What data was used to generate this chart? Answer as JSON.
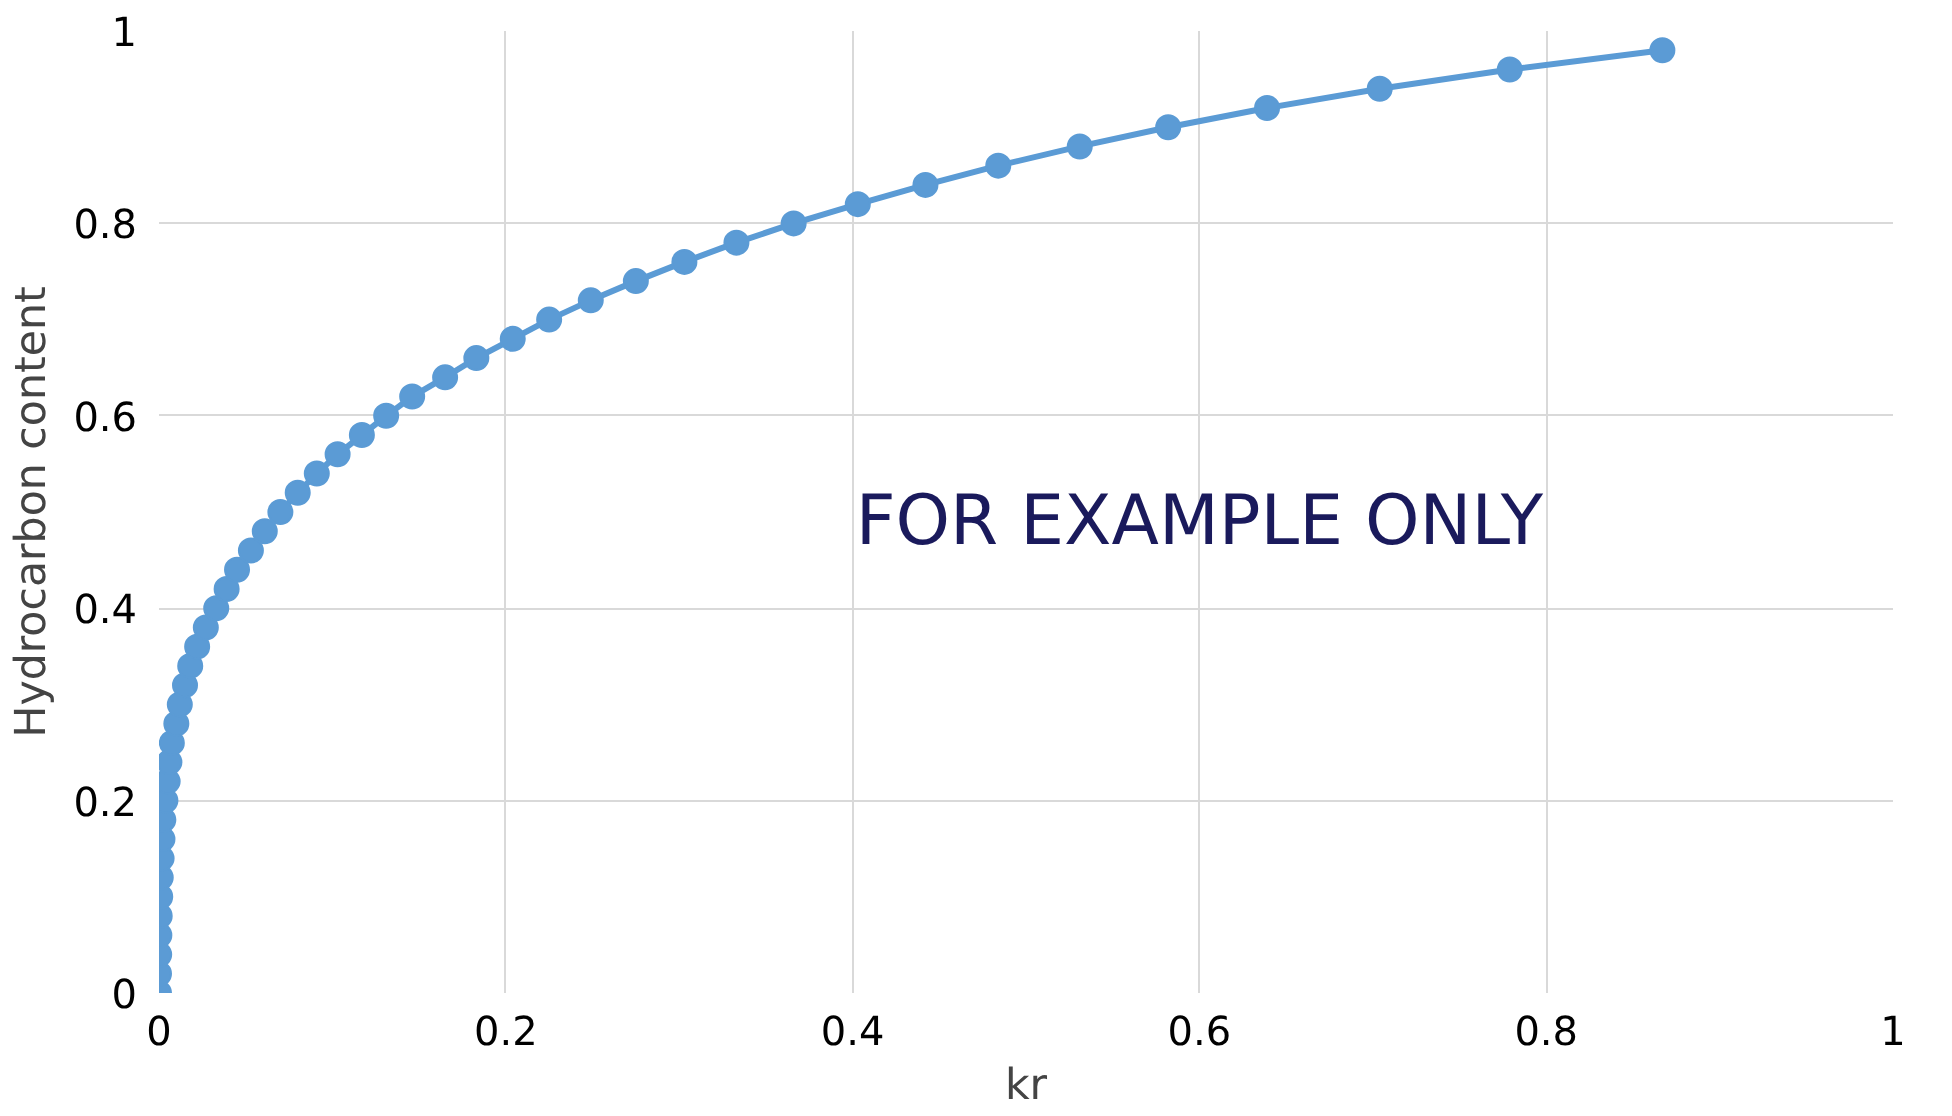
{
  "chart_data": {
    "type": "line",
    "xlabel": "kr",
    "ylabel": "Hydrocarbon content",
    "annotations": [
      "FOR EXAMPLE ONLY"
    ],
    "xlim": [
      0,
      1
    ],
    "ylim": [
      0,
      1
    ],
    "xticks": [
      0,
      0.2,
      0.4,
      0.6,
      0.8,
      1
    ],
    "yticks": [
      0,
      0.2,
      0.4,
      0.6,
      0.8,
      1
    ],
    "grid": true,
    "marker": "circle",
    "line_style": "solid",
    "series": [
      {
        "color": "#5b9bd5",
        "x": [
          0,
          0,
          0.0001,
          0.0002,
          0.0004,
          0.0007,
          0.001,
          0.0015,
          0.002,
          0.0025,
          0.0037,
          0.005,
          0.006,
          0.0074,
          0.01,
          0.012,
          0.015,
          0.018,
          0.022,
          0.027,
          0.033,
          0.039,
          0.045,
          0.053,
          0.061,
          0.07,
          0.08,
          0.091,
          0.103,
          0.117,
          0.131,
          0.146,
          0.165,
          0.183,
          0.204,
          0.225,
          0.249,
          0.275,
          0.303,
          0.333,
          0.366,
          0.403,
          0.442,
          0.484,
          0.531,
          0.582,
          0.639,
          0.704,
          0.779,
          0.867
        ],
        "values": [
          0,
          0.02,
          0.04,
          0.06,
          0.08,
          0.1,
          0.12,
          0.14,
          0.16,
          0.18,
          0.2,
          0.22,
          0.24,
          0.26,
          0.28,
          0.3,
          0.32,
          0.34,
          0.36,
          0.38,
          0.4,
          0.42,
          0.44,
          0.46,
          0.48,
          0.5,
          0.52,
          0.54,
          0.56,
          0.58,
          0.6,
          0.62,
          0.64,
          0.66,
          0.68,
          0.7,
          0.72,
          0.74,
          0.76,
          0.78,
          0.8,
          0.82,
          0.84,
          0.86,
          0.88,
          0.9,
          0.92,
          0.94,
          0.96,
          0.98
        ]
      }
    ]
  }
}
